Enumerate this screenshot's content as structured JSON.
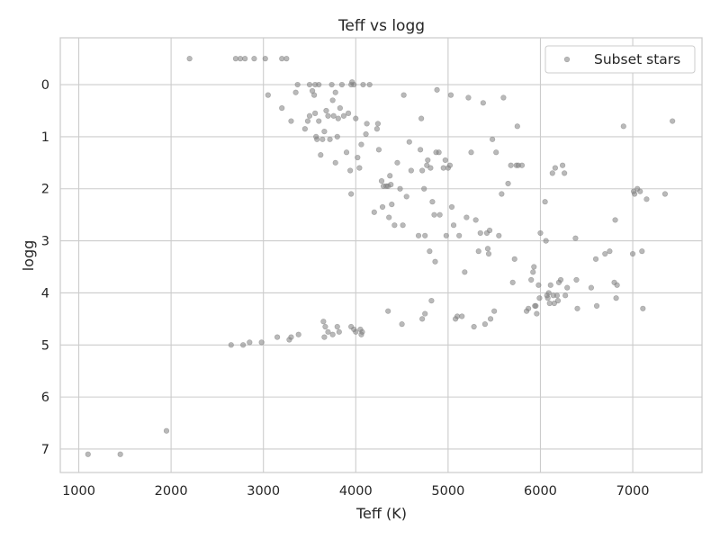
{
  "chart_data": {
    "type": "scatter",
    "title": "Teff vs logg",
    "xlabel": "Teff (K)",
    "ylabel": "logg",
    "xlim": [
      800,
      7750
    ],
    "ylim": [
      7.45,
      -0.9
    ],
    "y_inverted": true,
    "grid": true,
    "legend": {
      "placement": "top-right",
      "entries": [
        "Subset stars"
      ]
    },
    "xticks": [
      1000,
      2000,
      3000,
      4000,
      5000,
      6000,
      7000
    ],
    "yticks": [
      0,
      1,
      2,
      3,
      4,
      5,
      6,
      7
    ],
    "series": [
      {
        "name": "Subset stars",
        "color": "#808080",
        "points": [
          [
            2200,
            -0.5
          ],
          [
            2700,
            -0.5
          ],
          [
            2750,
            -0.5
          ],
          [
            2800,
            -0.5
          ],
          [
            2900,
            -0.5
          ],
          [
            3020,
            -0.5
          ],
          [
            3200,
            -0.5
          ],
          [
            3250,
            -0.5
          ],
          [
            3050,
            0.2
          ],
          [
            3200,
            0.45
          ],
          [
            3300,
            0.7
          ],
          [
            3350,
            0.15
          ],
          [
            3370,
            0.0
          ],
          [
            3450,
            0.85
          ],
          [
            3480,
            0.7
          ],
          [
            3500,
            0.6
          ],
          [
            3500,
            0.0
          ],
          [
            3530,
            0.12
          ],
          [
            3550,
            0.2
          ],
          [
            3560,
            0.0
          ],
          [
            3560,
            0.55
          ],
          [
            3570,
            1.0
          ],
          [
            3580,
            1.05
          ],
          [
            3600,
            0.0
          ],
          [
            3600,
            0.7
          ],
          [
            3620,
            1.35
          ],
          [
            3640,
            1.05
          ],
          [
            3660,
            0.9
          ],
          [
            3680,
            0.5
          ],
          [
            3700,
            0.6
          ],
          [
            3720,
            1.05
          ],
          [
            3740,
            0.0
          ],
          [
            3750,
            0.3
          ],
          [
            3760,
            0.6
          ],
          [
            3780,
            0.15
          ],
          [
            3780,
            1.5
          ],
          [
            3800,
            1.0
          ],
          [
            3810,
            0.65
          ],
          [
            3830,
            0.45
          ],
          [
            3850,
            0.0
          ],
          [
            3870,
            0.6
          ],
          [
            3900,
            1.3
          ],
          [
            3920,
            0.55
          ],
          [
            3940,
            1.65
          ],
          [
            3950,
            0.0
          ],
          [
            3950,
            2.1
          ],
          [
            3960,
            -0.05
          ],
          [
            3980,
            0.0
          ],
          [
            4000,
            0.65
          ],
          [
            4020,
            1.4
          ],
          [
            4040,
            1.6
          ],
          [
            4060,
            1.15
          ],
          [
            4080,
            0.0
          ],
          [
            4110,
            0.95
          ],
          [
            4120,
            0.75
          ],
          [
            4150,
            0.0
          ],
          [
            4200,
            2.45
          ],
          [
            4230,
            0.85
          ],
          [
            4240,
            0.75
          ],
          [
            4250,
            1.25
          ],
          [
            4280,
            1.85
          ],
          [
            4290,
            2.35
          ],
          [
            4300,
            1.95
          ],
          [
            4330,
            1.95
          ],
          [
            4350,
            1.95
          ],
          [
            4360,
            2.55
          ],
          [
            4370,
            1.75
          ],
          [
            4380,
            1.92
          ],
          [
            4390,
            2.3
          ],
          [
            4420,
            2.7
          ],
          [
            4450,
            1.5
          ],
          [
            4480,
            2.0
          ],
          [
            4510,
            2.7
          ],
          [
            4520,
            0.2
          ],
          [
            4550,
            2.15
          ],
          [
            4580,
            1.1
          ],
          [
            4600,
            1.65
          ],
          [
            4680,
            2.9
          ],
          [
            4700,
            1.25
          ],
          [
            4710,
            0.65
          ],
          [
            4720,
            1.65
          ],
          [
            4740,
            2.0
          ],
          [
            4750,
            2.9
          ],
          [
            4770,
            1.55
          ],
          [
            4780,
            1.45
          ],
          [
            4800,
            3.2
          ],
          [
            4810,
            1.6
          ],
          [
            4830,
            2.25
          ],
          [
            4850,
            2.5
          ],
          [
            4860,
            3.4
          ],
          [
            4870,
            1.3
          ],
          [
            4880,
            0.1
          ],
          [
            4900,
            1.3
          ],
          [
            4910,
            2.5
          ],
          [
            4950,
            1.6
          ],
          [
            4970,
            1.45
          ],
          [
            4980,
            2.9
          ],
          [
            5000,
            1.6
          ],
          [
            5020,
            1.55
          ],
          [
            5030,
            0.2
          ],
          [
            5040,
            2.35
          ],
          [
            5060,
            2.7
          ],
          [
            5080,
            4.5
          ],
          [
            5100,
            4.45
          ],
          [
            5120,
            2.9
          ],
          [
            5150,
            4.45
          ],
          [
            5180,
            3.6
          ],
          [
            5200,
            2.55
          ],
          [
            5220,
            0.25
          ],
          [
            5250,
            1.3
          ],
          [
            5280,
            4.65
          ],
          [
            5300,
            2.6
          ],
          [
            5330,
            3.2
          ],
          [
            5350,
            2.85
          ],
          [
            5380,
            0.35
          ],
          [
            5400,
            4.6
          ],
          [
            5420,
            2.85
          ],
          [
            5430,
            3.15
          ],
          [
            5440,
            3.25
          ],
          [
            5450,
            2.8
          ],
          [
            5460,
            4.5
          ],
          [
            5480,
            1.05
          ],
          [
            5500,
            4.35
          ],
          [
            5520,
            1.3
          ],
          [
            5550,
            2.9
          ],
          [
            5580,
            2.1
          ],
          [
            5600,
            0.25
          ],
          [
            5650,
            1.9
          ],
          [
            5680,
            1.55
          ],
          [
            5700,
            3.8
          ],
          [
            5720,
            3.35
          ],
          [
            5740,
            1.55
          ],
          [
            5750,
            0.8
          ],
          [
            5760,
            1.55
          ],
          [
            5800,
            1.55
          ],
          [
            5850,
            4.35
          ],
          [
            5870,
            4.3
          ],
          [
            5900,
            3.75
          ],
          [
            5920,
            3.6
          ],
          [
            5930,
            3.5
          ],
          [
            5940,
            4.25
          ],
          [
            5950,
            4.25
          ],
          [
            5960,
            4.4
          ],
          [
            5980,
            3.85
          ],
          [
            5990,
            4.1
          ],
          [
            6000,
            2.85
          ],
          [
            6050,
            2.25
          ],
          [
            6060,
            3.0
          ],
          [
            6070,
            4.05
          ],
          [
            6080,
            4.1
          ],
          [
            6090,
            4.0
          ],
          [
            6100,
            4.2
          ],
          [
            6110,
            3.85
          ],
          [
            6130,
            1.7
          ],
          [
            6140,
            4.05
          ],
          [
            6150,
            4.2
          ],
          [
            6160,
            1.6
          ],
          [
            6180,
            4.05
          ],
          [
            6190,
            4.15
          ],
          [
            6200,
            3.8
          ],
          [
            6220,
            3.75
          ],
          [
            6240,
            1.55
          ],
          [
            6260,
            1.7
          ],
          [
            6270,
            4.05
          ],
          [
            6290,
            3.9
          ],
          [
            6380,
            2.95
          ],
          [
            6390,
            3.75
          ],
          [
            6400,
            4.3
          ],
          [
            6550,
            3.9
          ],
          [
            6600,
            3.35
          ],
          [
            6610,
            4.25
          ],
          [
            6700,
            3.25
          ],
          [
            6750,
            3.2
          ],
          [
            6800,
            3.8
          ],
          [
            6810,
            2.6
          ],
          [
            6820,
            4.1
          ],
          [
            6830,
            3.85
          ],
          [
            6900,
            0.8
          ],
          [
            7000,
            3.25
          ],
          [
            7010,
            2.05
          ],
          [
            7020,
            2.1
          ],
          [
            7050,
            2.0
          ],
          [
            7080,
            2.05
          ],
          [
            7100,
            3.2
          ],
          [
            7110,
            4.3
          ],
          [
            7150,
            2.2
          ],
          [
            7350,
            2.1
          ],
          [
            7430,
            0.7
          ],
          [
            2650,
            5.0
          ],
          [
            2780,
            5.0
          ],
          [
            2850,
            4.95
          ],
          [
            2980,
            4.95
          ],
          [
            3150,
            4.85
          ],
          [
            3280,
            4.9
          ],
          [
            3300,
            4.85
          ],
          [
            3380,
            4.8
          ],
          [
            3650,
            4.55
          ],
          [
            3660,
            4.85
          ],
          [
            3670,
            4.65
          ],
          [
            3700,
            4.75
          ],
          [
            3750,
            4.8
          ],
          [
            3800,
            4.65
          ],
          [
            3820,
            4.75
          ],
          [
            3950,
            4.65
          ],
          [
            3980,
            4.7
          ],
          [
            4000,
            4.75
          ],
          [
            4050,
            4.7
          ],
          [
            4060,
            4.8
          ],
          [
            4070,
            4.75
          ],
          [
            4350,
            4.35
          ],
          [
            4500,
            4.6
          ],
          [
            4720,
            4.5
          ],
          [
            4750,
            4.4
          ],
          [
            4820,
            4.15
          ],
          [
            1100,
            7.1
          ],
          [
            1450,
            7.1
          ],
          [
            1950,
            6.65
          ]
        ]
      }
    ]
  }
}
